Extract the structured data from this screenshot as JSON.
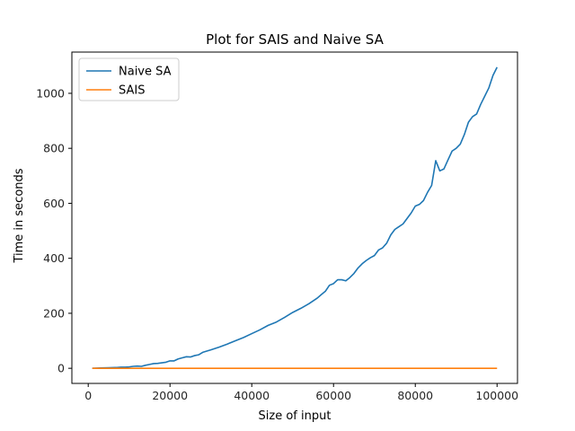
{
  "chart_data": {
    "type": "line",
    "title": "Plot for SAIS and Naive SA",
    "xlabel": "Size of input",
    "ylabel": "Time in seconds",
    "xlim": [
      -4000,
      105000
    ],
    "ylim": [
      -55,
      1150
    ],
    "x_ticks": [
      0,
      20000,
      40000,
      60000,
      80000,
      100000
    ],
    "y_ticks": [
      0,
      200,
      400,
      600,
      800,
      1000
    ],
    "grid": false,
    "legend_position": "upper-left",
    "series": [
      {
        "name": "Naive SA",
        "color": "#1f77b4",
        "x": [
          1000,
          3000,
          5000,
          7000,
          8000,
          9000,
          10000,
          11000,
          12000,
          13000,
          14000,
          15000,
          16000,
          17000,
          18000,
          19000,
          20000,
          21000,
          22000,
          23000,
          24000,
          25000,
          26000,
          27000,
          28000,
          30000,
          32000,
          34000,
          36000,
          38000,
          40000,
          42000,
          44000,
          46000,
          48000,
          50000,
          52000,
          54000,
          56000,
          57000,
          58000,
          59000,
          60000,
          61000,
          62000,
          63000,
          64000,
          65000,
          66000,
          67000,
          68000,
          69000,
          70000,
          71000,
          72000,
          73000,
          74000,
          75000,
          76000,
          77000,
          78000,
          79000,
          80000,
          81000,
          82000,
          83000,
          84000,
          85000,
          86000,
          87000,
          88000,
          89000,
          90000,
          91000,
          92000,
          93000,
          94000,
          95000,
          96000,
          97000,
          98000,
          99000,
          100000
        ],
        "y": [
          0,
          1,
          2,
          3,
          4,
          4,
          5,
          7,
          8,
          7,
          11,
          14,
          17,
          18,
          20,
          22,
          27,
          27,
          34,
          38,
          42,
          41,
          46,
          49,
          58,
          67,
          77,
          88,
          100,
          112,
          126,
          140,
          156,
          168,
          185,
          203,
          218,
          235,
          255,
          268,
          280,
          302,
          308,
          322,
          322,
          318,
          330,
          345,
          365,
          380,
          392,
          402,
          410,
          430,
          438,
          455,
          485,
          505,
          515,
          525,
          545,
          565,
          590,
          596,
          610,
          640,
          665,
          755,
          718,
          725,
          758,
          790,
          800,
          815,
          850,
          895,
          915,
          925,
          960,
          990,
          1020,
          1065,
          1095
        ]
      },
      {
        "name": "SAIS",
        "color": "#ff7f0e",
        "x": [
          1000,
          100000
        ],
        "y": [
          0,
          0
        ]
      }
    ]
  }
}
